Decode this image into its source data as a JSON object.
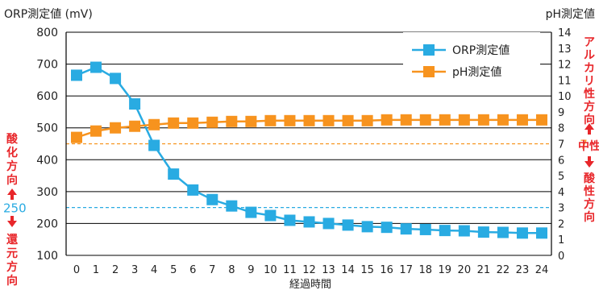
{
  "chart_data": {
    "type": "line",
    "xlabel": "経過時間",
    "x": [
      0,
      1,
      2,
      3,
      4,
      5,
      6,
      7,
      8,
      9,
      10,
      11,
      12,
      13,
      14,
      15,
      16,
      17,
      18,
      19,
      20,
      21,
      22,
      23,
      24
    ],
    "y_left": {
      "label": "ORP測定値 (mV)",
      "range": [
        100,
        800
      ],
      "ticks": [
        100,
        200,
        300,
        400,
        500,
        600,
        700,
        800
      ]
    },
    "y_right": {
      "label": "pH測定値",
      "range": [
        0,
        14
      ],
      "ticks": [
        0,
        1,
        2,
        3,
        4,
        5,
        6,
        7,
        8,
        9,
        10,
        11,
        12,
        13,
        14
      ]
    },
    "series": [
      {
        "name": "ORP測定値",
        "axis": "left",
        "color": "#29ABE2",
        "marker": "square",
        "values": [
          665,
          690,
          655,
          575,
          445,
          355,
          305,
          275,
          255,
          235,
          225,
          210,
          205,
          200,
          195,
          190,
          188,
          183,
          181,
          178,
          177,
          173,
          172,
          170,
          170
        ]
      },
      {
        "name": "pH測定値",
        "axis": "right",
        "color": "#F7931E",
        "marker": "square",
        "values": [
          7.4,
          7.8,
          8.0,
          8.1,
          8.2,
          8.3,
          8.3,
          8.35,
          8.4,
          8.4,
          8.45,
          8.45,
          8.45,
          8.45,
          8.45,
          8.45,
          8.5,
          8.5,
          8.5,
          8.5,
          8.5,
          8.5,
          8.5,
          8.5,
          8.5
        ]
      }
    ],
    "reference_lines": {
      "orp": {
        "value": 250,
        "label": "250",
        "color": "#29ABE2"
      },
      "ph": {
        "value": 7,
        "label": "7",
        "color": "#F7931E"
      }
    },
    "left_annotations": {
      "upper": "酸化方向",
      "lower": "還元方向",
      "color": "#E8262A"
    },
    "right_annotations": {
      "upper": "アルカリ性方向",
      "middle": "中性",
      "lower": "酸性方向",
      "color": "#E8262A"
    },
    "legend_position": "top-right",
    "grid": "horizontal"
  }
}
